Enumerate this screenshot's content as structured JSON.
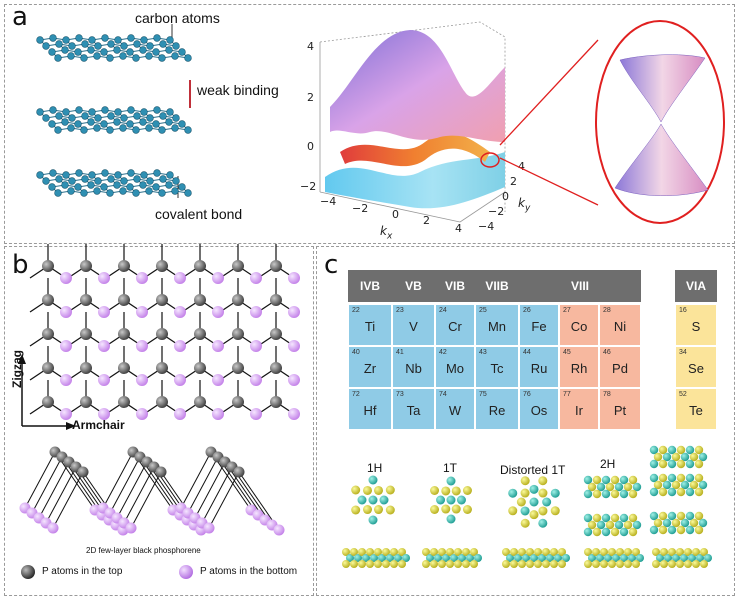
{
  "panels": {
    "a": {
      "label": "a",
      "layers": {
        "carbon_label": "carbon atoms",
        "weak_label": "weak binding",
        "covalent_label": "covalent bond"
      },
      "plot": {
        "z_ticks": [
          "4",
          "2",
          "0",
          "−2"
        ],
        "kx_ticks": [
          "−4",
          "−2",
          "0",
          "2",
          "4"
        ],
        "ky_ticks": [
          "4",
          "2",
          "0",
          "−2",
          "−4"
        ],
        "kx_label": "k",
        "kx_sub": "x",
        "ky_label": "k",
        "ky_sub": "y"
      }
    },
    "b": {
      "label": "b",
      "zigzag_label": "Zigzag",
      "armchair_label": "Armchair",
      "caption": "2D few-layer black phosphorene",
      "legend_top": "P atoms in the top",
      "legend_bottom": "P atoms in the bottom",
      "colors": {
        "top_atom": "#3a3a3a",
        "bottom_atom": "#c27ee8"
      }
    },
    "c": {
      "label": "c",
      "groups": [
        "IVB",
        "VB",
        "VIB",
        "VIIB",
        "VIII",
        "VIA"
      ],
      "rows": [
        [
          {
            "n": "22",
            "s": "Ti"
          },
          {
            "n": "23",
            "s": "V"
          },
          {
            "n": "24",
            "s": "Cr"
          },
          {
            "n": "25",
            "s": "Mn"
          },
          {
            "n": "26",
            "s": "Fe"
          },
          {
            "n": "27",
            "s": "Co"
          },
          {
            "n": "28",
            "s": "Ni"
          }
        ],
        [
          {
            "n": "40",
            "s": "Zr"
          },
          {
            "n": "41",
            "s": "Nb"
          },
          {
            "n": "42",
            "s": "Mo"
          },
          {
            "n": "43",
            "s": "Tc"
          },
          {
            "n": "44",
            "s": "Ru"
          },
          {
            "n": "45",
            "s": "Rh"
          },
          {
            "n": "46",
            "s": "Pd"
          }
        ],
        [
          {
            "n": "72",
            "s": "Hf"
          },
          {
            "n": "73",
            "s": "Ta"
          },
          {
            "n": "74",
            "s": "W"
          },
          {
            "n": "75",
            "s": "Re"
          },
          {
            "n": "76",
            "s": "Os"
          },
          {
            "n": "77",
            "s": "Ir"
          },
          {
            "n": "78",
            "s": "Pt"
          }
        ]
      ],
      "chalcogens": [
        {
          "n": "16",
          "s": "S"
        },
        {
          "n": "34",
          "s": "Se"
        },
        {
          "n": "52",
          "s": "Te"
        }
      ],
      "phases": [
        "1H",
        "1T",
        "Distorted 1T",
        "2H"
      ],
      "colors": {
        "metal_atom": "#2bb5a8",
        "chalcogen_atom": "#d6d23a"
      }
    }
  }
}
